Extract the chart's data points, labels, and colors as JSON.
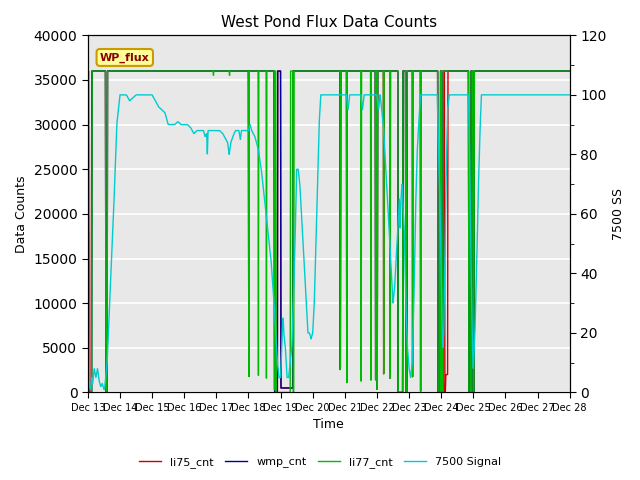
{
  "title": "West Pond Flux Data Counts",
  "xlabel": "Time",
  "ylabel_left": "Data Counts",
  "ylabel_right": "7500 SS",
  "annotation": "WP_flux",
  "ylim_left": [
    0,
    40000
  ],
  "ylim_right": [
    0,
    120
  ],
  "left_yticks": [
    0,
    5000,
    10000,
    15000,
    20000,
    25000,
    30000,
    35000,
    40000
  ],
  "right_yticks": [
    0,
    20,
    40,
    60,
    80,
    100,
    120
  ],
  "xstart": 13,
  "xend": 28,
  "line_colors": {
    "li75_cnt": "#cc0000",
    "wmp_cnt": "#000099",
    "li77_cnt": "#00bb00",
    "7500 Signal": "#00cccc"
  },
  "background_color": "#e8e8e8",
  "figure_bg": "#ffffff",
  "annotation_bg": "#ffff99",
  "annotation_border": "#cc9900"
}
